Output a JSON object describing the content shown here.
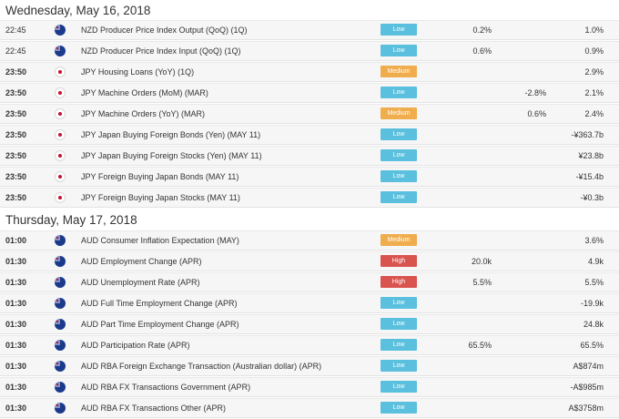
{
  "days": [
    {
      "date": "Wednesday, May 16, 2018",
      "events": [
        {
          "time": "22:45",
          "bold": false,
          "flag": "nz",
          "flag_icon": "nz-flag-icon",
          "event": "NZD Producer Price Index Output (QoQ) (1Q)",
          "impact": "Low",
          "impact_level": "low",
          "actual": "",
          "forecast": "0.2%",
          "previous": "1.0%"
        },
        {
          "time": "22:45",
          "bold": false,
          "flag": "nz",
          "flag_icon": "nz-flag-icon",
          "event": "NZD Producer Price Index Input (QoQ) (1Q)",
          "impact": "Low",
          "impact_level": "low",
          "actual": "",
          "forecast": "0.6%",
          "previous": "0.9%"
        },
        {
          "time": "23:50",
          "bold": true,
          "flag": "jp",
          "flag_icon": "jp-flag-icon",
          "event": "JPY Housing Loans (YoY) (1Q)",
          "impact": "Medium",
          "impact_level": "medium",
          "actual": "",
          "forecast": "",
          "previous": "2.9%"
        },
        {
          "time": "23:50",
          "bold": true,
          "flag": "jp",
          "flag_icon": "jp-flag-icon",
          "event": "JPY Machine Orders (MoM) (MAR)",
          "impact": "Low",
          "impact_level": "low",
          "actual": "-2.8%",
          "forecast": "",
          "previous": "2.1%"
        },
        {
          "time": "23:50",
          "bold": true,
          "flag": "jp",
          "flag_icon": "jp-flag-icon",
          "event": "JPY Machine Orders (YoY) (MAR)",
          "impact": "Medium",
          "impact_level": "medium",
          "actual": "0.6%",
          "forecast": "",
          "previous": "2.4%"
        },
        {
          "time": "23:50",
          "bold": true,
          "flag": "jp",
          "flag_icon": "jp-flag-icon",
          "event": "JPY Japan Buying Foreign Bonds (Yen) (MAY 11)",
          "impact": "Low",
          "impact_level": "low",
          "actual": "",
          "forecast": "",
          "previous": "-¥363.7b"
        },
        {
          "time": "23:50",
          "bold": true,
          "flag": "jp",
          "flag_icon": "jp-flag-icon",
          "event": "JPY Japan Buying Foreign Stocks (Yen) (MAY 11)",
          "impact": "Low",
          "impact_level": "low",
          "actual": "",
          "forecast": "",
          "previous": "¥23.8b"
        },
        {
          "time": "23:50",
          "bold": true,
          "flag": "jp",
          "flag_icon": "jp-flag-icon",
          "event": "JPY Foreign Buying Japan Bonds (MAY 11)",
          "impact": "Low",
          "impact_level": "low",
          "actual": "",
          "forecast": "",
          "previous": "-¥15.4b"
        },
        {
          "time": "23:50",
          "bold": true,
          "flag": "jp",
          "flag_icon": "jp-flag-icon",
          "event": "JPY Foreign Buying Japan Stocks (MAY 11)",
          "impact": "Low",
          "impact_level": "low",
          "actual": "",
          "forecast": "",
          "previous": "-¥0.3b"
        }
      ]
    },
    {
      "date": "Thursday, May 17, 2018",
      "events": [
        {
          "time": "01:00",
          "bold": true,
          "flag": "au",
          "flag_icon": "au-flag-icon",
          "event": "AUD Consumer Inflation Expectation (MAY)",
          "impact": "Medium",
          "impact_level": "medium",
          "actual": "",
          "forecast": "",
          "previous": "3.6%"
        },
        {
          "time": "01:30",
          "bold": true,
          "flag": "au",
          "flag_icon": "au-flag-icon",
          "event": "AUD Employment Change (APR)",
          "impact": "High",
          "impact_level": "high",
          "actual": "",
          "forecast": "20.0k",
          "previous": "4.9k"
        },
        {
          "time": "01:30",
          "bold": true,
          "flag": "au",
          "flag_icon": "au-flag-icon",
          "event": "AUD Unemployment Rate (APR)",
          "impact": "High",
          "impact_level": "high",
          "actual": "",
          "forecast": "5.5%",
          "previous": "5.5%"
        },
        {
          "time": "01:30",
          "bold": true,
          "flag": "au",
          "flag_icon": "au-flag-icon",
          "event": "AUD Full Time Employment Change (APR)",
          "impact": "Low",
          "impact_level": "low",
          "actual": "",
          "forecast": "",
          "previous": "-19.9k"
        },
        {
          "time": "01:30",
          "bold": true,
          "flag": "au",
          "flag_icon": "au-flag-icon",
          "event": "AUD Part Time Employment Change (APR)",
          "impact": "Low",
          "impact_level": "low",
          "actual": "",
          "forecast": "",
          "previous": "24.8k"
        },
        {
          "time": "01:30",
          "bold": true,
          "flag": "au",
          "flag_icon": "au-flag-icon",
          "event": "AUD Participation Rate (APR)",
          "impact": "Low",
          "impact_level": "low",
          "actual": "",
          "forecast": "65.5%",
          "previous": "65.5%"
        },
        {
          "time": "01:30",
          "bold": true,
          "flag": "au",
          "flag_icon": "au-flag-icon",
          "event": "AUD RBA Foreign Exchange Transaction (Australian dollar) (APR)",
          "impact": "Low",
          "impact_level": "low",
          "actual": "",
          "forecast": "",
          "previous": "A$874m"
        },
        {
          "time": "01:30",
          "bold": true,
          "flag": "au",
          "flag_icon": "au-flag-icon",
          "event": "AUD RBA FX Transactions Government (APR)",
          "impact": "Low",
          "impact_level": "low",
          "actual": "",
          "forecast": "",
          "previous": "-A$985m"
        },
        {
          "time": "01:30",
          "bold": true,
          "flag": "au",
          "flag_icon": "au-flag-icon",
          "event": "AUD RBA FX Transactions Other (APR)",
          "impact": "Low",
          "impact_level": "low",
          "actual": "",
          "forecast": "",
          "previous": "A$3758m"
        }
      ]
    }
  ]
}
